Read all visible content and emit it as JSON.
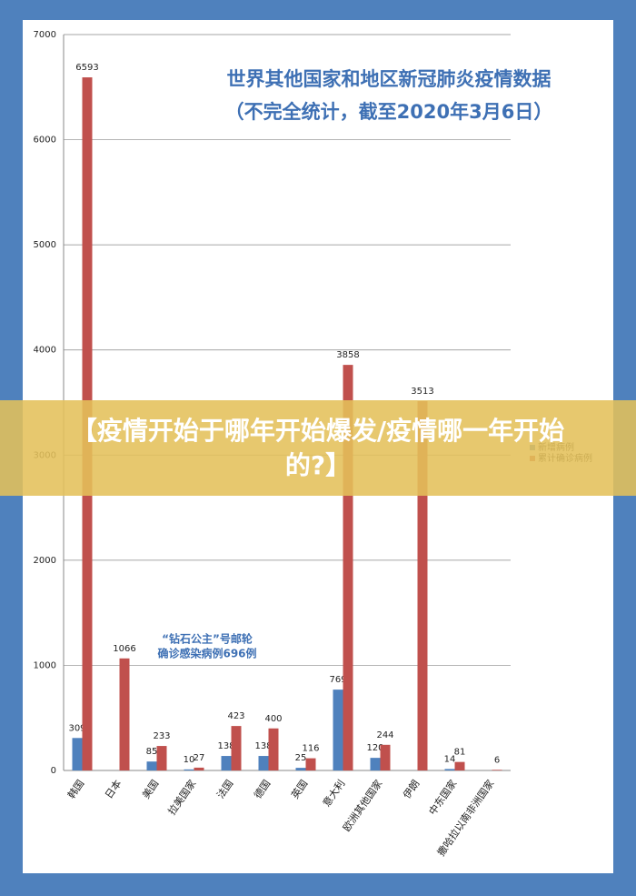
{
  "chart_data": {
    "type": "bar",
    "title": [
      "世界其他国家和地区新冠肺炎疫情数据",
      "（不完全统计，截至2020年3月6日）"
    ],
    "categories": [
      "韩国",
      "日本",
      "美国",
      "拉美国家",
      "法国",
      "德国",
      "英国",
      "意大利",
      "欧洲其他国家",
      "伊朗",
      "中东国家",
      "撒哈拉以南非洲国家"
    ],
    "series": [
      {
        "name": "新增病例",
        "color": "#4f81bd",
        "values": [
          309,
          null,
          85,
          10,
          138,
          138,
          25,
          769,
          120,
          null,
          14,
          null
        ]
      },
      {
        "name": "累计确诊病例",
        "color": "#c0504d",
        "values": [
          6593,
          1066,
          233,
          27,
          423,
          400,
          116,
          3858,
          244,
          3513,
          81,
          6
        ]
      }
    ],
    "annotation": [
      "“钻石公主”号邮轮",
      "确诊感染病例696例"
    ],
    "ylim": [
      0,
      7000
    ],
    "yticks": [
      0,
      1000,
      2000,
      3000,
      4000,
      5000,
      6000,
      7000
    ],
    "grid": true,
    "legend": "right"
  },
  "banner": "【疫情开始于哪年开始爆发/疫情哪一年开始的?】"
}
